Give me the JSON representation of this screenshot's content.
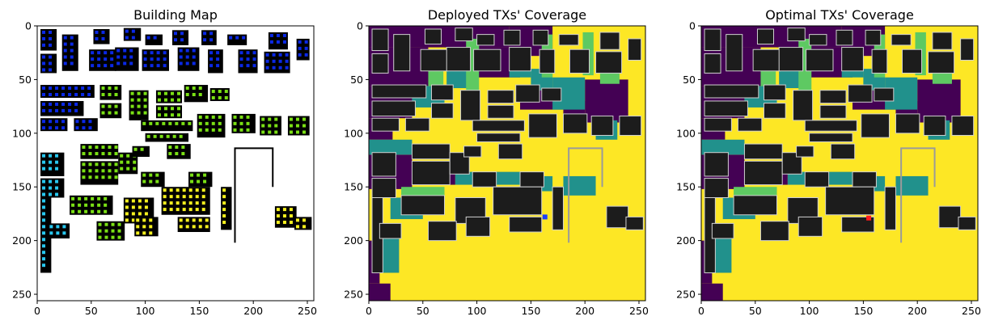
{
  "figure": {
    "panels": [
      {
        "id": "building-map",
        "title": "Building Map",
        "kind": "building-map"
      },
      {
        "id": "deployed",
        "title": "Deployed TXs' Coverage",
        "kind": "coverage",
        "tx_marker": {
          "x": 163,
          "y": 178,
          "color": "#1a3cff"
        }
      },
      {
        "id": "optimal",
        "title": "Optimal TXs' Coverage",
        "kind": "coverage",
        "tx_marker": {
          "x": 155,
          "y": 179,
          "color": "#ff1a1a"
        }
      }
    ]
  },
  "chart_data": {
    "type": "heatmap",
    "image_extent": [
      0,
      256
    ],
    "x_ticks": [
      0,
      50,
      100,
      150,
      200,
      250
    ],
    "y_ticks": [
      0,
      50,
      100,
      150,
      200,
      250
    ],
    "x_tick_labels": [
      "0",
      "50",
      "100",
      "150",
      "200",
      "250"
    ],
    "y_tick_labels": [
      "0",
      "50",
      "100",
      "150",
      "200",
      "250"
    ],
    "colors": {
      "no_coverage": "#440154",
      "teal": "#21918c",
      "green": "#5ec962",
      "covered": "#fde725",
      "building": "#1c1c1c",
      "building_edge": "#d0d0d0"
    }
  }
}
